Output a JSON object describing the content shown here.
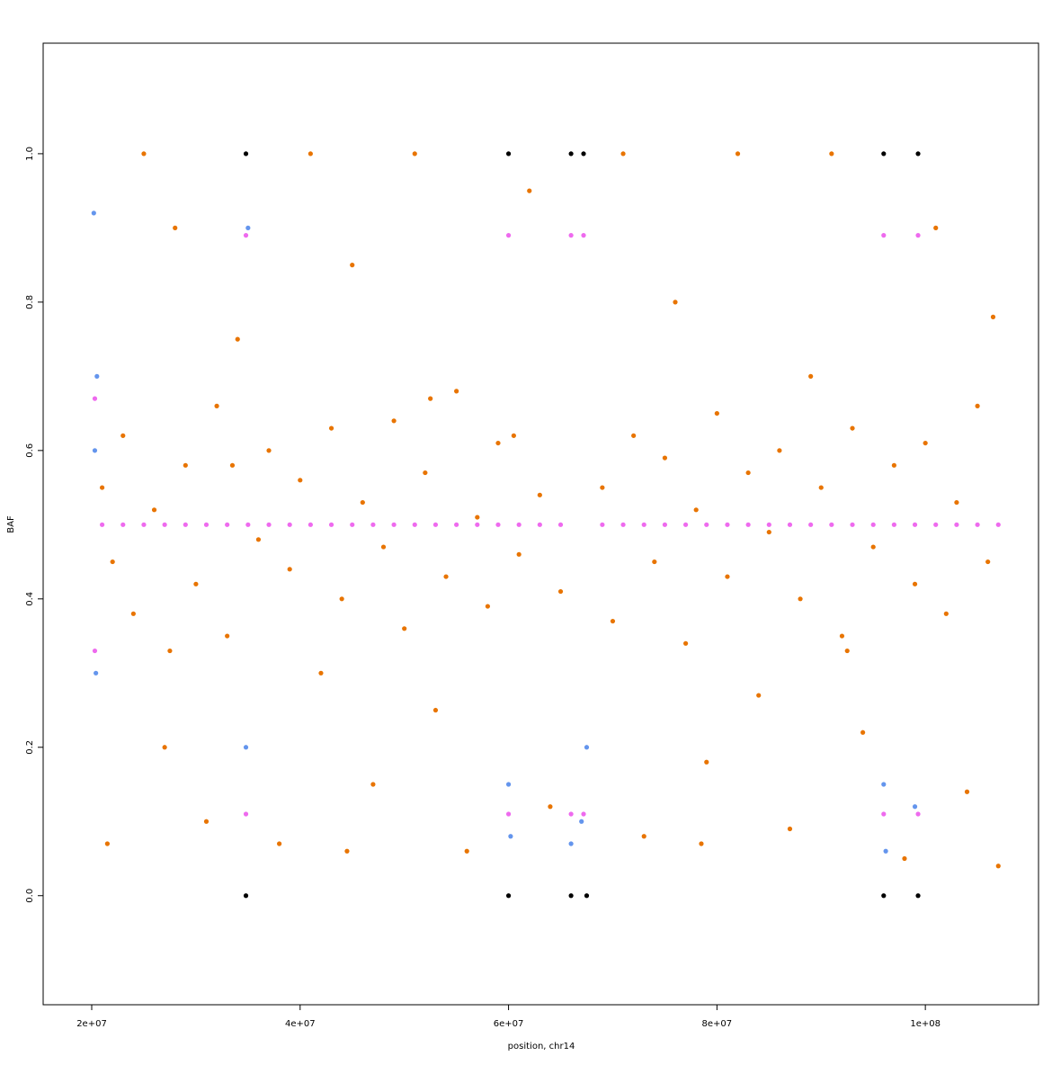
{
  "chart_data": {
    "type": "scatter",
    "xlabel": "position, chr14",
    "ylabel": "BAF",
    "xlim": [
      15340000,
      110860000
    ],
    "ylim": [
      -0.147,
      1.149
    ],
    "xticks": [
      {
        "value": 20000000,
        "label": "2e+07"
      },
      {
        "value": 40000000,
        "label": "4e+07"
      },
      {
        "value": 60000000,
        "label": "6e+07"
      },
      {
        "value": 80000000,
        "label": "8e+07"
      },
      {
        "value": 100000000,
        "label": "1e+08"
      }
    ],
    "yticks": [
      {
        "value": 0,
        "label": "0.0"
      },
      0.2,
      0.4,
      0.6,
      0.8,
      {
        "value": 1,
        "label": "1.0"
      }
    ],
    "series": [
      {
        "color": "#e87400",
        "x": [
          21000000,
          22000000,
          23000000,
          24000000,
          25000000,
          26000000,
          27000000,
          28000000,
          29000000,
          30000000,
          31000000,
          32000000,
          33000000,
          34000000,
          36000000,
          37000000,
          38000000,
          39000000,
          40000000,
          41000000,
          42000000,
          43000000,
          44000000,
          45000000,
          46000000,
          47000000,
          48000000,
          49000000,
          50000000,
          51000000,
          52000000,
          53000000,
          54000000,
          55000000,
          56000000,
          57000000,
          58000000,
          59000000,
          61000000,
          62000000,
          63000000,
          64000000,
          65000000,
          69000000,
          70000000,
          71000000,
          72000000,
          73000000,
          74000000,
          75000000,
          76000000,
          77000000,
          78000000,
          79000000,
          80000000,
          81000000,
          82000000,
          83000000,
          84000000,
          85000000,
          86000000,
          87000000,
          88000000,
          89000000,
          90000000,
          91000000,
          92000000,
          93000000,
          94000000,
          95000000,
          97000000,
          98000000,
          99000000,
          100000000,
          101000000,
          102000000,
          103000000,
          104000000,
          105000000,
          106000000,
          107000000,
          106500000,
          21500000,
          33500000,
          44500000,
          60500000,
          27500000,
          52500000,
          78500000,
          92500000
        ],
        "y": [
          0.55,
          0.45,
          0.62,
          0.38,
          1.0,
          0.52,
          0.2,
          0.9,
          0.58,
          0.42,
          0.1,
          0.66,
          0.35,
          0.75,
          0.48,
          0.6,
          0.07,
          0.44,
          0.56,
          1.0,
          0.3,
          0.63,
          0.4,
          0.85,
          0.53,
          0.15,
          0.47,
          0.64,
          0.36,
          1.0,
          0.57,
          0.25,
          0.43,
          0.68,
          0.06,
          0.51,
          0.39,
          0.61,
          0.46,
          0.95,
          0.54,
          0.12,
          0.41,
          0.55,
          0.37,
          1.0,
          0.62,
          0.08,
          0.45,
          0.59,
          0.8,
          0.34,
          0.52,
          0.18,
          0.65,
          0.43,
          1.0,
          0.57,
          0.27,
          0.49,
          0.6,
          0.09,
          0.4,
          0.7,
          0.55,
          1.0,
          0.35,
          0.63,
          0.22,
          0.47,
          0.58,
          0.05,
          0.42,
          0.61,
          0.9,
          0.38,
          0.53,
          0.14,
          0.66,
          0.45,
          0.04,
          0.78,
          0.07,
          0.58,
          0.06,
          0.62,
          0.33,
          0.67,
          0.07,
          0.33
        ]
      },
      {
        "color": "#6495ed",
        "x": [
          20300000,
          20400000,
          20200000,
          20500000,
          34800000,
          35000000,
          60000000,
          60200000,
          66000000,
          67000000,
          67500000,
          96000000,
          96200000,
          99000000
        ],
        "y": [
          0.6,
          0.3,
          0.92,
          0.7,
          0.2,
          0.9,
          0.15,
          0.08,
          0.07,
          0.1,
          0.2,
          0.15,
          0.06,
          0.12
        ]
      },
      {
        "color": "#ee6aee",
        "x": [
          21000000,
          23000000,
          25000000,
          27000000,
          29000000,
          31000000,
          33000000,
          35000000,
          37000000,
          39000000,
          41000000,
          43000000,
          45000000,
          47000000,
          49000000,
          51000000,
          53000000,
          55000000,
          57000000,
          59000000,
          61000000,
          63000000,
          65000000,
          69000000,
          71000000,
          73000000,
          75000000,
          77000000,
          79000000,
          81000000,
          83000000,
          85000000,
          87000000,
          89000000,
          91000000,
          93000000,
          95000000,
          97000000,
          99000000,
          101000000,
          103000000,
          105000000,
          107000000,
          34800000,
          34800000,
          60000000,
          60000000,
          66000000,
          66000000,
          67200000,
          67200000,
          96000000,
          96000000,
          99300000,
          99300000,
          20300000,
          20300000
        ],
        "y": [
          0.5,
          0.5,
          0.5,
          0.5,
          0.5,
          0.5,
          0.5,
          0.5,
          0.5,
          0.5,
          0.5,
          0.5,
          0.5,
          0.5,
          0.5,
          0.5,
          0.5,
          0.5,
          0.5,
          0.5,
          0.5,
          0.5,
          0.5,
          0.5,
          0.5,
          0.5,
          0.5,
          0.5,
          0.5,
          0.5,
          0.5,
          0.5,
          0.5,
          0.5,
          0.5,
          0.5,
          0.5,
          0.5,
          0.5,
          0.5,
          0.5,
          0.5,
          0.5,
          0.89,
          0.11,
          0.89,
          0.11,
          0.89,
          0.11,
          0.89,
          0.11,
          0.89,
          0.11,
          0.89,
          0.11,
          0.33,
          0.67
        ]
      },
      {
        "color": "#000000",
        "x": [
          34800000,
          34800000,
          60000000,
          60000000,
          66000000,
          66000000,
          67200000,
          67500000,
          96000000,
          96000000,
          99300000,
          99300000
        ],
        "y": [
          1,
          0,
          1,
          0,
          1,
          0,
          1,
          0,
          1,
          0,
          1,
          0
        ]
      }
    ]
  }
}
